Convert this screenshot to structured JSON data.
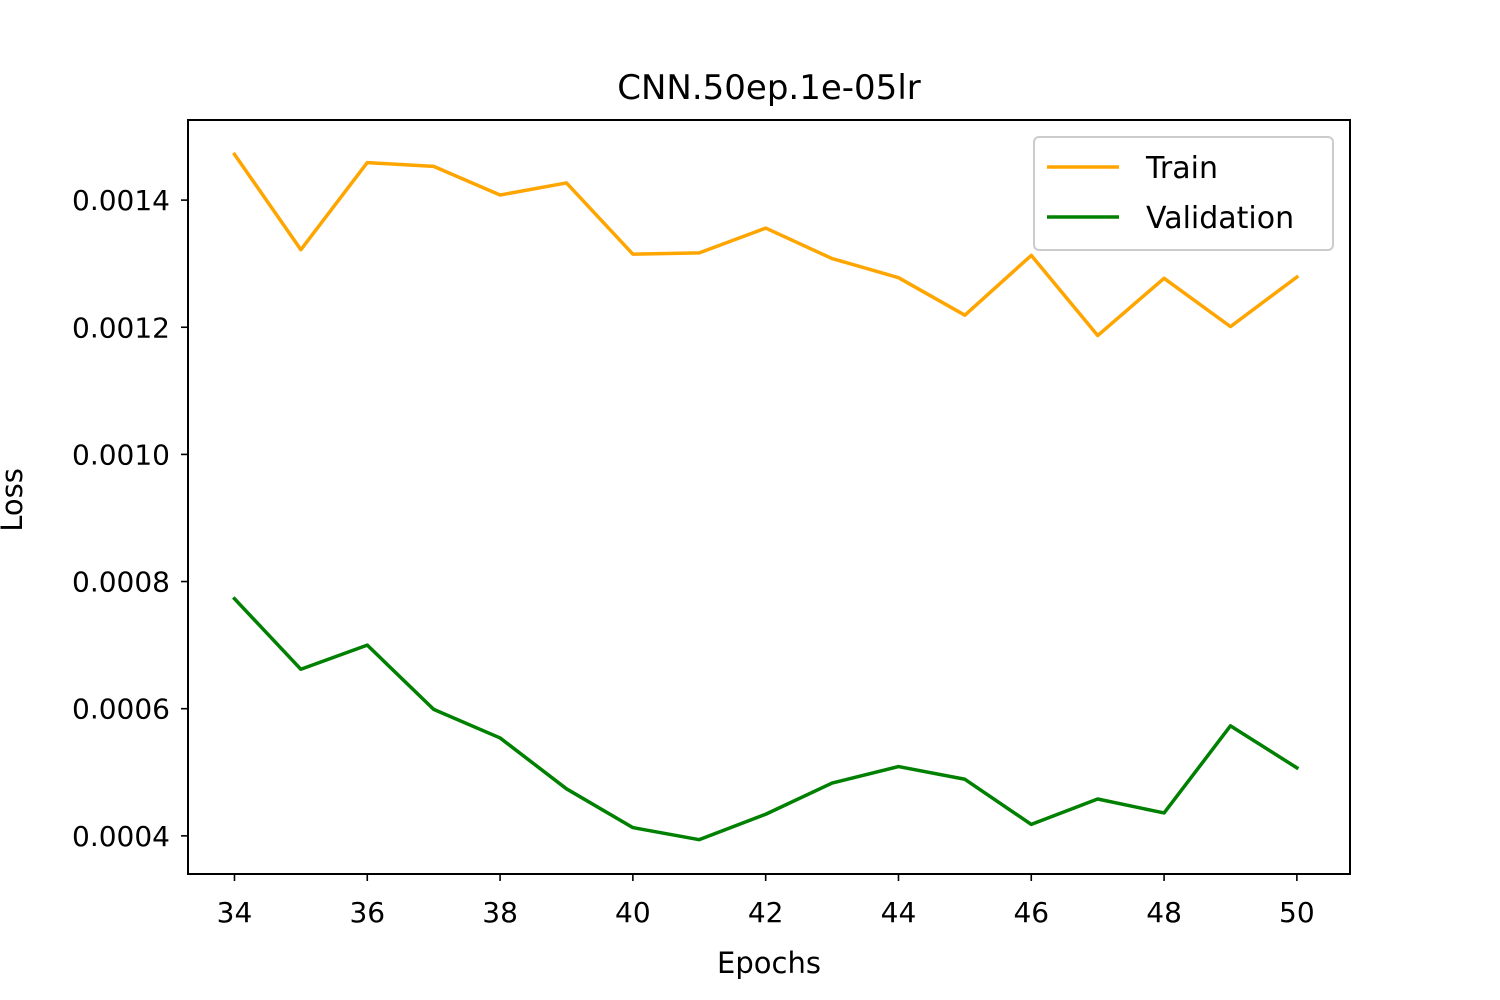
{
  "chart_data": {
    "type": "line",
    "title": "CNN.50ep.1e-05lr",
    "xlabel": "Epochs",
    "ylabel": "Loss",
    "x": [
      34,
      35,
      36,
      37,
      38,
      39,
      40,
      41,
      42,
      43,
      44,
      45,
      46,
      47,
      48,
      49,
      50
    ],
    "xlim": [
      33.3,
      50.8
    ],
    "ylim": [
      0.00034,
      0.001526
    ],
    "xticks": [
      34,
      36,
      38,
      40,
      42,
      44,
      46,
      48,
      50
    ],
    "xtick_labels": [
      "34",
      "36",
      "38",
      "40",
      "42",
      "44",
      "46",
      "48",
      "50"
    ],
    "yticks": [
      0.0004,
      0.0006,
      0.0008,
      0.001,
      0.0012,
      0.0014
    ],
    "ytick_labels": [
      "0.0004",
      "0.0006",
      "0.0008",
      "0.0010",
      "0.0012",
      "0.0014"
    ],
    "grid": false,
    "legend_position": "upper right",
    "series": [
      {
        "name": "Train",
        "color": "#ffa500",
        "values": [
          0.001472,
          0.001322,
          0.001459,
          0.001453,
          0.001408,
          0.001427,
          0.001315,
          0.001317,
          0.001356,
          0.001308,
          0.001278,
          0.001219,
          0.001313,
          0.001187,
          0.001277,
          0.001201,
          0.001279
        ]
      },
      {
        "name": "Validation",
        "color": "#008000",
        "values": [
          0.000773,
          0.000662,
          0.0007,
          0.000599,
          0.000554,
          0.000474,
          0.000413,
          0.000394,
          0.000434,
          0.000483,
          0.000509,
          0.000489,
          0.000418,
          0.000458,
          0.000436,
          0.000573,
          0.000507
        ]
      }
    ]
  }
}
